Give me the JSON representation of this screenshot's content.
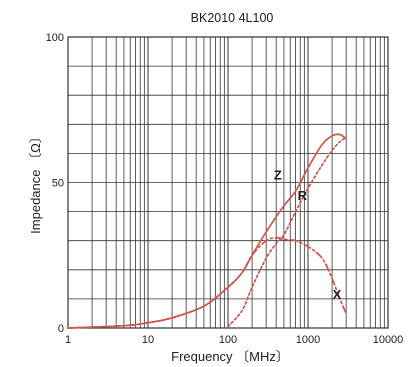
{
  "chart_data": {
    "type": "line",
    "title": "BK2010 4L100",
    "xlabel": "Frequency 〔MHz〕",
    "ylabel": "Impedance 〔Ω〕",
    "x_scale": "log",
    "xlim": [
      1,
      10000
    ],
    "ylim": [
      0,
      100
    ],
    "x_ticks": [
      {
        "value": 1,
        "label": "1"
      },
      {
        "value": 10,
        "label": "10"
      },
      {
        "value": 100,
        "label": "100"
      },
      {
        "value": 1000,
        "label": "1000"
      },
      {
        "value": 10000,
        "label": "10000"
      }
    ],
    "y_ticks": [
      {
        "value": 0,
        "label": "0"
      },
      {
        "value": 50,
        "label": "50"
      },
      {
        "value": 100,
        "label": "100"
      }
    ],
    "grid": true,
    "colors": {
      "series": "#d0564a",
      "grid": "#333333"
    },
    "series": [
      {
        "name": "Z",
        "line_style": "solid",
        "x": [
          1,
          5,
          10,
          20,
          50,
          100,
          150,
          200,
          300,
          500,
          700,
          1000,
          1500,
          2000,
          2500,
          3000
        ],
        "y": [
          0,
          0.8,
          1.8,
          3.5,
          7.5,
          14,
          19,
          25,
          33,
          42,
          47,
          55,
          63,
          66,
          66.5,
          65
        ],
        "label_at": [
          420,
          51
        ]
      },
      {
        "name": "R",
        "line_style": "dotted",
        "x": [
          100,
          150,
          200,
          300,
          400,
          500,
          700,
          1000,
          1500,
          2000,
          2500,
          3000
        ],
        "y": [
          0.5,
          6,
          14,
          24,
          29,
          32,
          40,
          48,
          56,
          61,
          64,
          65.5
        ],
        "label_at": [
          850,
          44
        ]
      },
      {
        "name": "X",
        "line_style": "dash-dot",
        "x": [
          1,
          5,
          10,
          20,
          50,
          100,
          150,
          200,
          300,
          400,
          500,
          700,
          1000,
          1500,
          2000,
          2500,
          3000
        ],
        "y": [
          0,
          0.8,
          1.8,
          3.5,
          7.5,
          14,
          19,
          25,
          30,
          31,
          30.5,
          30,
          28,
          24,
          17,
          10,
          5
        ],
        "label_at": [
          2300,
          10
        ]
      }
    ]
  }
}
